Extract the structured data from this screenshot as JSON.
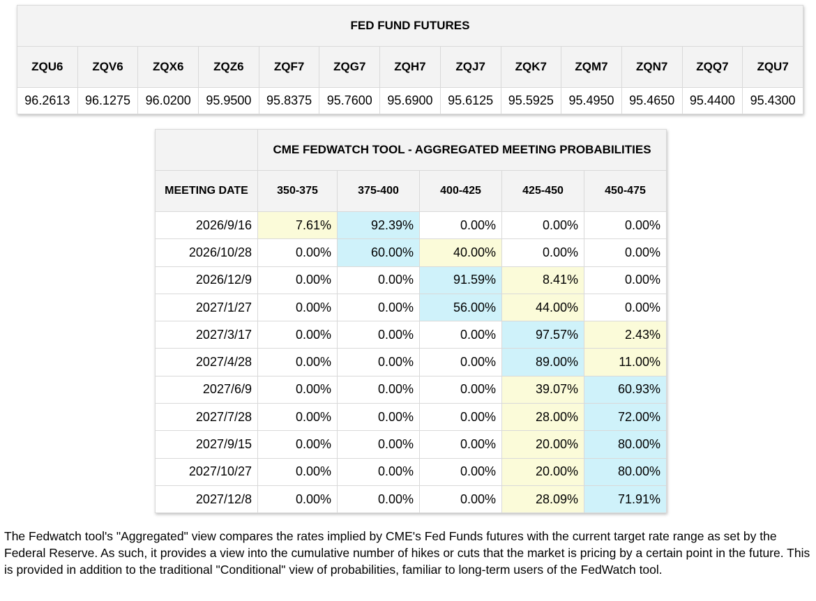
{
  "futures": {
    "title": "FED FUND FUTURES",
    "contracts": [
      {
        "code": "ZQU6",
        "price": "96.2613"
      },
      {
        "code": "ZQV6",
        "price": "96.1275"
      },
      {
        "code": "ZQX6",
        "price": "96.0200"
      },
      {
        "code": "ZQZ6",
        "price": "95.9500"
      },
      {
        "code": "ZQF7",
        "price": "95.8375"
      },
      {
        "code": "ZQG7",
        "price": "95.7600"
      },
      {
        "code": "ZQH7",
        "price": "95.6900"
      },
      {
        "code": "ZQJ7",
        "price": "95.6125"
      },
      {
        "code": "ZQK7",
        "price": "95.5925"
      },
      {
        "code": "ZQM7",
        "price": "95.4950"
      },
      {
        "code": "ZQN7",
        "price": "95.4650"
      },
      {
        "code": "ZQQ7",
        "price": "95.4400"
      },
      {
        "code": "ZQU7",
        "price": "95.4300"
      }
    ]
  },
  "fedwatch": {
    "title": "CME FEDWATCH TOOL - AGGREGATED MEETING PROBABILITIES",
    "date_header": "MEETING DATE",
    "ranges": [
      "350-375",
      "375-400",
      "400-425",
      "425-450",
      "450-475"
    ],
    "highlight_colors": {
      "primary": "#cff2fa",
      "secondary": "#fbfbd9"
    },
    "rows": [
      {
        "date": "2026/9/16",
        "values": [
          "7.61%",
          "92.39%",
          "0.00%",
          "0.00%",
          "0.00%"
        ],
        "highlight": [
          "secondary",
          "primary",
          "",
          "",
          ""
        ]
      },
      {
        "date": "2026/10/28",
        "values": [
          "0.00%",
          "60.00%",
          "40.00%",
          "0.00%",
          "0.00%"
        ],
        "highlight": [
          "",
          "primary",
          "secondary",
          "",
          ""
        ]
      },
      {
        "date": "2026/12/9",
        "values": [
          "0.00%",
          "0.00%",
          "91.59%",
          "8.41%",
          "0.00%"
        ],
        "highlight": [
          "",
          "",
          "primary",
          "secondary",
          ""
        ]
      },
      {
        "date": "2027/1/27",
        "values": [
          "0.00%",
          "0.00%",
          "56.00%",
          "44.00%",
          "0.00%"
        ],
        "highlight": [
          "",
          "",
          "primary",
          "secondary",
          ""
        ]
      },
      {
        "date": "2027/3/17",
        "values": [
          "0.00%",
          "0.00%",
          "0.00%",
          "97.57%",
          "2.43%"
        ],
        "highlight": [
          "",
          "",
          "",
          "primary",
          "secondary"
        ]
      },
      {
        "date": "2027/4/28",
        "values": [
          "0.00%",
          "0.00%",
          "0.00%",
          "89.00%",
          "11.00%"
        ],
        "highlight": [
          "",
          "",
          "",
          "primary",
          "secondary"
        ]
      },
      {
        "date": "2027/6/9",
        "values": [
          "0.00%",
          "0.00%",
          "0.00%",
          "39.07%",
          "60.93%"
        ],
        "highlight": [
          "",
          "",
          "",
          "secondary",
          "primary"
        ]
      },
      {
        "date": "2027/7/28",
        "values": [
          "0.00%",
          "0.00%",
          "0.00%",
          "28.00%",
          "72.00%"
        ],
        "highlight": [
          "",
          "",
          "",
          "secondary",
          "primary"
        ]
      },
      {
        "date": "2027/9/15",
        "values": [
          "0.00%",
          "0.00%",
          "0.00%",
          "20.00%",
          "80.00%"
        ],
        "highlight": [
          "",
          "",
          "",
          "secondary",
          "primary"
        ]
      },
      {
        "date": "2027/10/27",
        "values": [
          "0.00%",
          "0.00%",
          "0.00%",
          "20.00%",
          "80.00%"
        ],
        "highlight": [
          "",
          "",
          "",
          "secondary",
          "primary"
        ]
      },
      {
        "date": "2027/12/8",
        "values": [
          "0.00%",
          "0.00%",
          "0.00%",
          "28.09%",
          "71.91%"
        ],
        "highlight": [
          "",
          "",
          "",
          "secondary",
          "primary"
        ]
      }
    ]
  },
  "footer": {
    "text": "The Fedwatch tool's \"Aggregated\" view compares the rates implied by CME's Fed Funds futures with the current target rate range as set by the Federal Reserve. As such, it provides a view into the cumulative number of hikes or cuts that the market is pricing by a certain point in the future. This is provided in addition to the traditional \"Conditional\" view of probabilities, familiar to long-term users of the FedWatch tool."
  }
}
